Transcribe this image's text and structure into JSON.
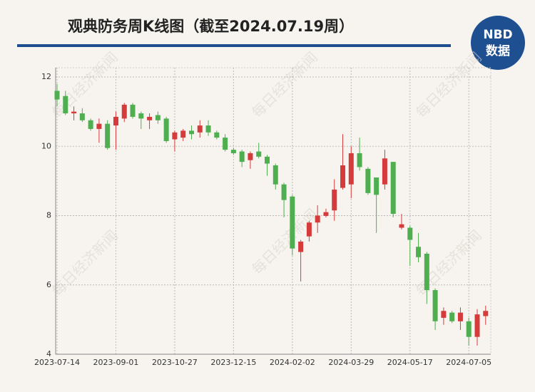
{
  "header": {
    "title": "观典防务周K线图（截至2024.07.19周）",
    "logo_top": "NBD",
    "logo_bottom": "数据"
  },
  "watermark": "每日经济新闻",
  "chart_data": {
    "type": "candlestick",
    "categories": [
      "2023-07-14",
      null,
      null,
      null,
      null,
      null,
      null,
      "2023-09-01",
      null,
      null,
      null,
      null,
      null,
      null,
      "2023-10-27",
      null,
      null,
      null,
      null,
      null,
      null,
      "2023-12-15",
      null,
      null,
      null,
      null,
      null,
      null,
      "2024-02-02",
      null,
      null,
      null,
      null,
      null,
      null,
      "2024-03-29",
      null,
      null,
      null,
      null,
      null,
      null,
      "2024-05-17",
      null,
      null,
      null,
      null,
      null,
      null,
      "2024-07-05",
      null,
      null
    ],
    "open": [
      11.6,
      11.45,
      10.95,
      10.95,
      10.75,
      10.5,
      10.65,
      10.6,
      10.8,
      11.2,
      10.95,
      10.75,
      10.9,
      10.8,
      10.2,
      10.25,
      10.45,
      10.4,
      10.6,
      10.4,
      10.25,
      9.9,
      9.85,
      9.6,
      9.85,
      9.7,
      9.45,
      8.9,
      8.55,
      6.95,
      7.4,
      7.8,
      7.99,
      8.15,
      8.8,
      8.9,
      9.8,
      9.35,
      9.1,
      8.9,
      9.55,
      7.65,
      7.65,
      7.1,
      6.9,
      5.85,
      5.05,
      5.2,
      4.95,
      4.95,
      4.5,
      5.1
    ],
    "high": [
      11.8,
      11.6,
      11.15,
      11.1,
      10.8,
      10.8,
      10.75,
      11.0,
      11.25,
      11.25,
      11.0,
      10.95,
      11.0,
      10.85,
      10.45,
      10.5,
      10.6,
      10.75,
      10.75,
      10.45,
      10.35,
      9.95,
      9.9,
      9.85,
      10.1,
      9.75,
      9.5,
      8.95,
      8.6,
      7.3,
      7.85,
      8.3,
      8.2,
      9.05,
      10.35,
      10.0,
      10.25,
      9.4,
      9.1,
      9.9,
      9.55,
      8.05,
      7.7,
      7.5,
      6.95,
      5.9,
      5.35,
      5.25,
      5.35,
      5.05,
      5.3,
      5.4
    ],
    "low": [
      11.15,
      10.9,
      10.75,
      10.7,
      10.45,
      10.1,
      9.9,
      9.9,
      10.7,
      10.8,
      10.5,
      10.5,
      10.65,
      10.1,
      9.85,
      10.15,
      10.2,
      10.25,
      10.3,
      10.2,
      9.85,
      9.75,
      9.4,
      9.35,
      9.65,
      9.15,
      8.75,
      7.95,
      6.85,
      6.1,
      7.25,
      7.5,
      7.95,
      7.85,
      8.75,
      8.5,
      9.3,
      8.6,
      7.5,
      8.75,
      7.95,
      7.6,
      6.55,
      6.65,
      5.45,
      4.7,
      4.85,
      4.9,
      4.7,
      4.25,
      4.25,
      4.85
    ],
    "close": [
      11.35,
      10.95,
      11.0,
      10.75,
      10.5,
      10.65,
      9.95,
      10.85,
      11.2,
      10.85,
      10.8,
      10.85,
      10.75,
      10.15,
      10.4,
      10.45,
      10.35,
      10.6,
      10.4,
      10.25,
      9.9,
      9.8,
      9.55,
      9.8,
      9.7,
      9.5,
      8.9,
      8.45,
      7.05,
      7.25,
      7.8,
      8.0,
      8.1,
      8.75,
      9.45,
      9.8,
      9.4,
      8.65,
      8.6,
      9.65,
      8.05,
      7.75,
      7.3,
      6.8,
      5.85,
      4.95,
      5.25,
      4.95,
      5.2,
      4.5,
      5.15,
      5.25
    ],
    "up_color": "#d63b3b",
    "down_color": "#4fae4f",
    "ylim": [
      4,
      12
    ],
    "yticks": [
      4,
      6,
      8,
      10,
      12
    ],
    "grid": true
  }
}
